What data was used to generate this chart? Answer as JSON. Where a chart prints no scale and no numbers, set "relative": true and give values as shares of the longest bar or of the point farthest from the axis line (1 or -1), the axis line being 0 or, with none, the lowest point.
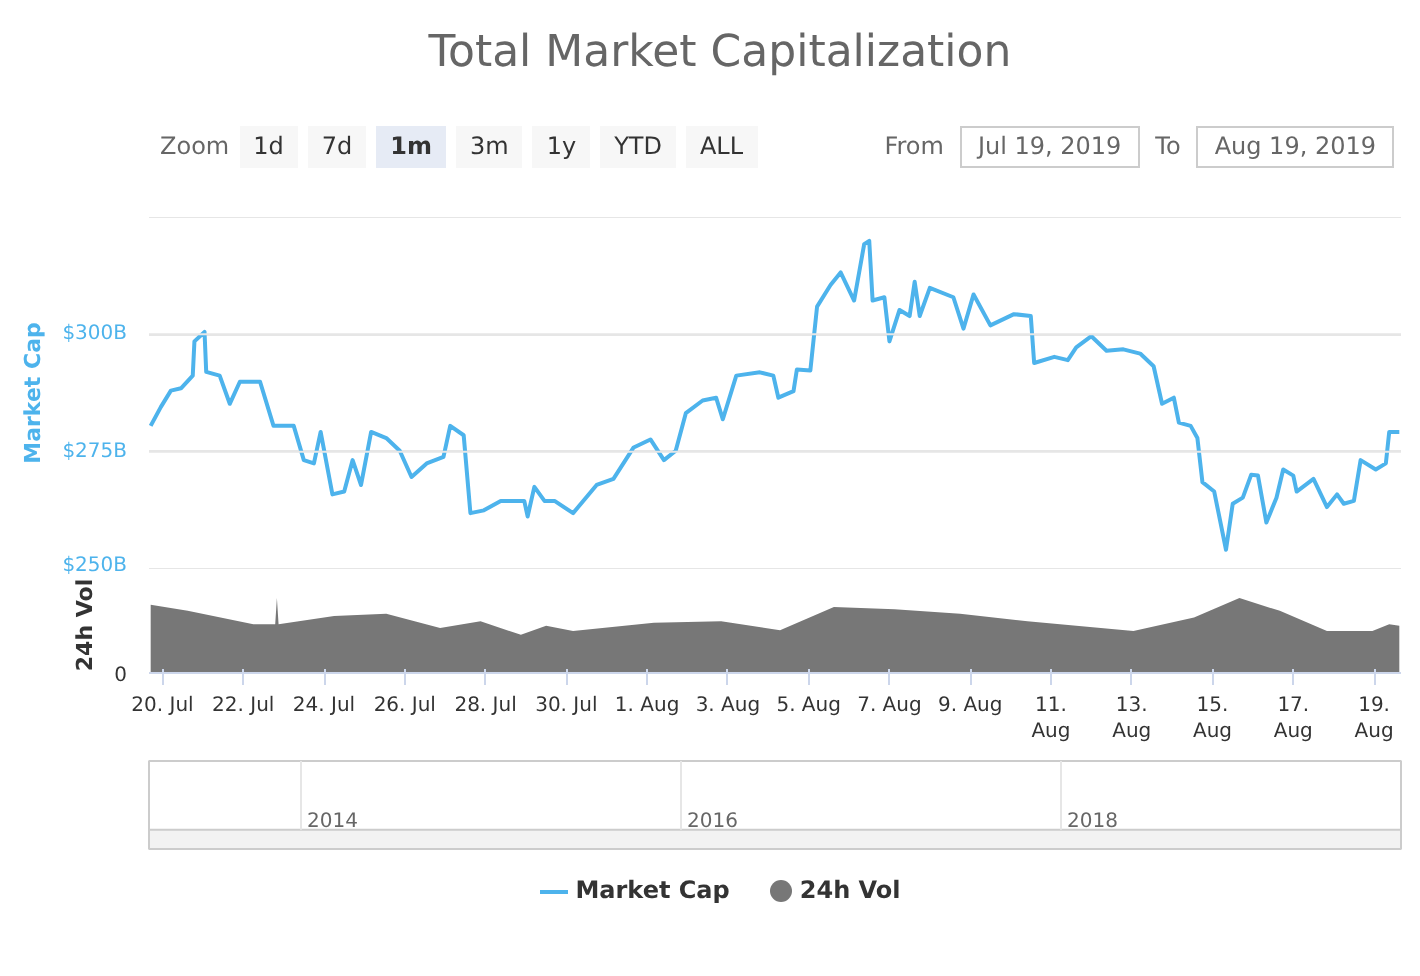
{
  "chart_data": [
    {
      "type": "line",
      "title": "Total Market Capitalization",
      "ylabel": "Market Cap",
      "legend": "bottom",
      "grid": "y",
      "tick_labels": "y",
      "marker": "none",
      "line_style": "solid",
      "xlim": [
        "2019-07-19T16:00",
        "2019-08-19T16:00"
      ],
      "ylim": [
        250,
        325
      ],
      "yticks": [
        {
          "value": 250,
          "label": "$250B"
        },
        {
          "value": 275,
          "label": "$275B"
        },
        {
          "value": 300,
          "label": "$300B"
        },
        {
          "value": 325,
          "label": null
        }
      ],
      "annotations": [
        "Zoom",
        "1d",
        "7d",
        "1m",
        "3m",
        "1y",
        "YTD",
        "ALL",
        "From",
        "Jul 19, 2019",
        "To",
        "Aug 19, 2019"
      ],
      "series": [
        {
          "name": "Market Cap",
          "color": "#4db3ec",
          "x": [
            "2019-07-19T17:00",
            "2019-07-19T23:00",
            "2019-07-20T05:00",
            "2019-07-20T11:00",
            "2019-07-20T18:00",
            "2019-07-20T19:00",
            "2019-07-21T01:00",
            "2019-07-21T02:00",
            "2019-07-21T10:00",
            "2019-07-21T16:00",
            "2019-07-21T22:00",
            "2019-07-22T10:00",
            "2019-07-22T18:00",
            "2019-07-23T06:00",
            "2019-07-23T12:00",
            "2019-07-23T18:00",
            "2019-07-23T22:00",
            "2019-07-24T05:00",
            "2019-07-24T12:00",
            "2019-07-24T17:00",
            "2019-07-24T22:00",
            "2019-07-25T04:00",
            "2019-07-25T13:00",
            "2019-07-25T21:00",
            "2019-07-26T04:00",
            "2019-07-26T13:00",
            "2019-07-26T23:00",
            "2019-07-27T03:00",
            "2019-07-27T11:00",
            "2019-07-27T15:00",
            "2019-07-27T23:00",
            "2019-07-28T09:00",
            "2019-07-28T23:00",
            "2019-07-29T01:00",
            "2019-07-29T05:00",
            "2019-07-29T11:00",
            "2019-07-29T17:00",
            "2019-07-30T04:00",
            "2019-07-30T18:00",
            "2019-07-31T04:00",
            "2019-07-31T16:00",
            "2019-08-01T02:00",
            "2019-08-01T10:00",
            "2019-08-01T17:00",
            "2019-08-01T23:00",
            "2019-08-02T09:00",
            "2019-08-02T17:00",
            "2019-08-02T21:00",
            "2019-08-03T05:00",
            "2019-08-03T19:00",
            "2019-08-04T03:00",
            "2019-08-04T06:00",
            "2019-08-04T15:00",
            "2019-08-04T17:00",
            "2019-08-05T01:00",
            "2019-08-05T05:00",
            "2019-08-05T13:00",
            "2019-08-05T19:00",
            "2019-08-06T03:00",
            "2019-08-06T09:00",
            "2019-08-06T12:00",
            "2019-08-06T14:00",
            "2019-08-06T21:00",
            "2019-08-07T00:00",
            "2019-08-07T06:00",
            "2019-08-07T12:00",
            "2019-08-07T15:00",
            "2019-08-07T18:00",
            "2019-08-08T00:00",
            "2019-08-08T14:00",
            "2019-08-08T20:00",
            "2019-08-09T02:00",
            "2019-08-09T12:00",
            "2019-08-10T02:00",
            "2019-08-10T12:00",
            "2019-08-10T14:00",
            "2019-08-11T02:00",
            "2019-08-11T10:00",
            "2019-08-11T15:00",
            "2019-08-12T00:00",
            "2019-08-12T09:00",
            "2019-08-12T19:00",
            "2019-08-13T05:00",
            "2019-08-13T13:00",
            "2019-08-13T18:00",
            "2019-08-14T01:00",
            "2019-08-14T04:00",
            "2019-08-14T11:00",
            "2019-08-14T15:00",
            "2019-08-14T18:00",
            "2019-08-15T01:00",
            "2019-08-15T08:00",
            "2019-08-15T12:00",
            "2019-08-15T18:00",
            "2019-08-15T23:00",
            "2019-08-16T03:00",
            "2019-08-16T08:00",
            "2019-08-16T14:00",
            "2019-08-16T18:00",
            "2019-08-17T00:00",
            "2019-08-17T02:00",
            "2019-08-17T12:00",
            "2019-08-17T20:00",
            "2019-08-18T02:00",
            "2019-08-18T06:00",
            "2019-08-18T12:00",
            "2019-08-18T16:00",
            "2019-08-19T01:00",
            "2019-08-19T07:00",
            "2019-08-19T09:00",
            "2019-08-19T15:00"
          ],
          "values": [
            280.5,
            284.5,
            288,
            288.5,
            291.2,
            298.5,
            300.5,
            292,
            291.2,
            285.2,
            289.9,
            289.9,
            280.5,
            280.5,
            273.2,
            272.5,
            279.2,
            265.9,
            266.5,
            273.2,
            267.9,
            279.2,
            277.9,
            275.2,
            269.6,
            272.5,
            273.9,
            280.5,
            278.5,
            261.9,
            262.5,
            264.5,
            264.5,
            261.2,
            267.5,
            264.5,
            264.5,
            261.9,
            267.9,
            269.2,
            275.9,
            277.6,
            273.2,
            275.2,
            283.2,
            285.9,
            286.5,
            281.9,
            291.2,
            291.9,
            291.2,
            286.5,
            287.9,
            292.5,
            292.3,
            305.9,
            310.5,
            313.2,
            307.2,
            319.2,
            319.9,
            307.2,
            307.9,
            298.5,
            305.2,
            303.9,
            311.2,
            303.9,
            309.9,
            307.9,
            301.2,
            308.5,
            301.9,
            304.3,
            303.9,
            293.9,
            295.2,
            294.5,
            297.2,
            299.6,
            296.5,
            296.8,
            295.9,
            293.2,
            285.2,
            286.5,
            281.2,
            280.5,
            277.9,
            268.5,
            266.5,
            254.1,
            263.9,
            265.2,
            270.1,
            269.9,
            259.9,
            265.2,
            271.2,
            269.9,
            266.5,
            269.2,
            263.2,
            265.9,
            263.9,
            264.5,
            273.2,
            271.2,
            272.5,
            279.2,
            279.2
          ]
        }
      ]
    },
    {
      "type": "area",
      "ylabel": "24h Vol",
      "relative": true,
      "legend": "bottom",
      "xlim": [
        "2019-07-19T16:00",
        "2019-08-19T16:00"
      ],
      "xticks": [
        {
          "value": "2019-07-20",
          "label": "20. Jul"
        },
        {
          "value": "2019-07-22",
          "label": "22. Jul"
        },
        {
          "value": "2019-07-24",
          "label": "24. Jul"
        },
        {
          "value": "2019-07-26",
          "label": "26. Jul"
        },
        {
          "value": "2019-07-28",
          "label": "28. Jul"
        },
        {
          "value": "2019-07-30",
          "label": "30. Jul"
        },
        {
          "value": "2019-08-01",
          "label": "1. Aug"
        },
        {
          "value": "2019-08-03",
          "label": "3. Aug"
        },
        {
          "value": "2019-08-05",
          "label": "5. Aug"
        },
        {
          "value": "2019-08-07",
          "label": "7. Aug"
        },
        {
          "value": "2019-08-09",
          "label": "9. Aug"
        },
        {
          "value": "2019-08-11",
          "label": "11.\nAug"
        },
        {
          "value": "2019-08-13",
          "label": "13.\nAug"
        },
        {
          "value": "2019-08-15",
          "label": "15.\nAug"
        },
        {
          "value": "2019-08-17",
          "label": "17.\nAug"
        },
        {
          "value": "2019-08-19",
          "label": "19.\nAug"
        }
      ],
      "annotations": [
        "0",
        "2014",
        "2016",
        "2018"
      ],
      "series": [
        {
          "name": "24h Vol",
          "color": "#777777",
          "x": [
            "2019-07-19T17:00",
            "2019-07-20T15:00",
            "2019-07-22T06:00",
            "2019-07-22T19:00",
            "2019-07-22T20:00",
            "2019-07-22T21:00",
            "2019-07-24T06:00",
            "2019-07-25T13:00",
            "2019-07-26T21:00",
            "2019-07-27T21:00",
            "2019-07-28T21:00",
            "2019-07-29T12:00",
            "2019-07-30T04:00",
            "2019-08-01T04:00",
            "2019-08-02T20:00",
            "2019-08-04T07:00",
            "2019-08-05T15:00",
            "2019-08-07T03:00",
            "2019-08-08T18:00",
            "2019-08-10T10:00",
            "2019-08-13T01:00",
            "2019-08-14T13:00",
            "2019-08-15T16:00",
            "2019-08-16T16:00",
            "2019-08-17T20:00",
            "2019-08-18T23:00",
            "2019-08-19T09:00",
            "2019-08-19T15:00"
          ],
          "values": [
            0.91,
            0.83,
            0.65,
            0.65,
            1.0,
            0.65,
            0.76,
            0.79,
            0.6,
            0.69,
            0.51,
            0.63,
            0.56,
            0.67,
            0.69,
            0.57,
            0.88,
            0.85,
            0.79,
            0.69,
            0.56,
            0.74,
            1.0,
            0.83,
            0.56,
            0.56,
            0.65,
            0.63
          ]
        }
      ]
    }
  ]
}
